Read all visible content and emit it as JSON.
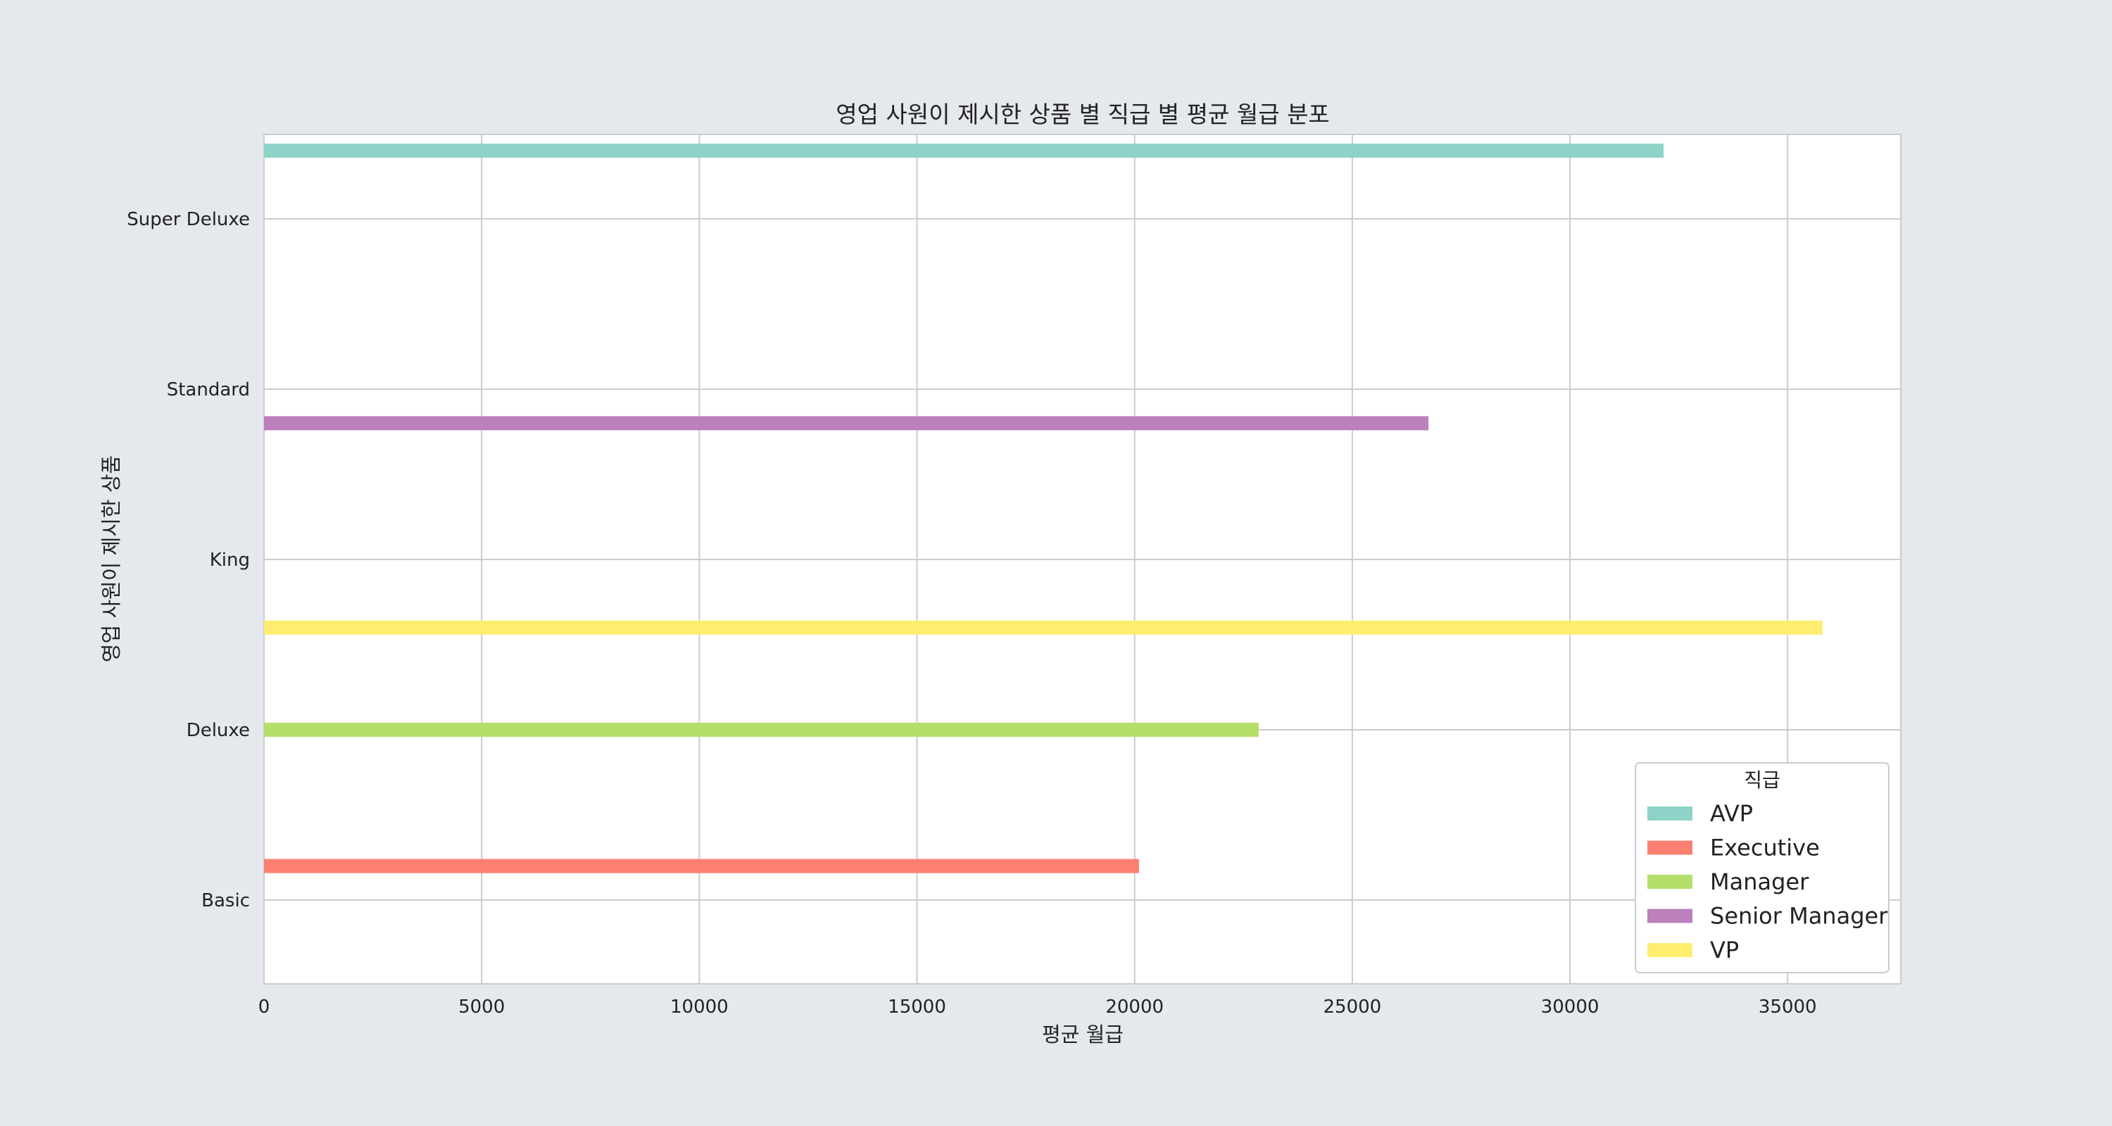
{
  "chart_data": {
    "type": "bar",
    "orientation": "horizontal",
    "title": "영업 사원이 제시한 상품 별 직급 별 평균 월급 분포",
    "xlabel": "평균 월급",
    "ylabel": "영업 사원이 제시한 상품",
    "categories": [
      "Basic",
      "Deluxe",
      "King",
      "Standard",
      "Super Deluxe"
    ],
    "xlim": [
      0,
      37600
    ],
    "xticks": [
      0,
      5000,
      10000,
      15000,
      20000,
      25000,
      30000,
      35000
    ],
    "grid": true,
    "legend": {
      "title": "직급",
      "position": "lower-right"
    },
    "series": [
      {
        "name": "AVP",
        "color": "#8dd3c7",
        "values": [
          null,
          null,
          null,
          null,
          32150
        ]
      },
      {
        "name": "Executive",
        "color": "#fb8072",
        "values": [
          20100,
          null,
          null,
          null,
          null
        ]
      },
      {
        "name": "Manager",
        "color": "#b3de69",
        "values": [
          null,
          22850,
          null,
          null,
          null
        ]
      },
      {
        "name": "Senior Manager",
        "color": "#bc80bd",
        "values": [
          null,
          null,
          null,
          26750,
          null
        ]
      },
      {
        "name": "VP",
        "color": "#ffed6f",
        "values": [
          null,
          null,
          35800,
          null,
          null
        ]
      }
    ]
  }
}
